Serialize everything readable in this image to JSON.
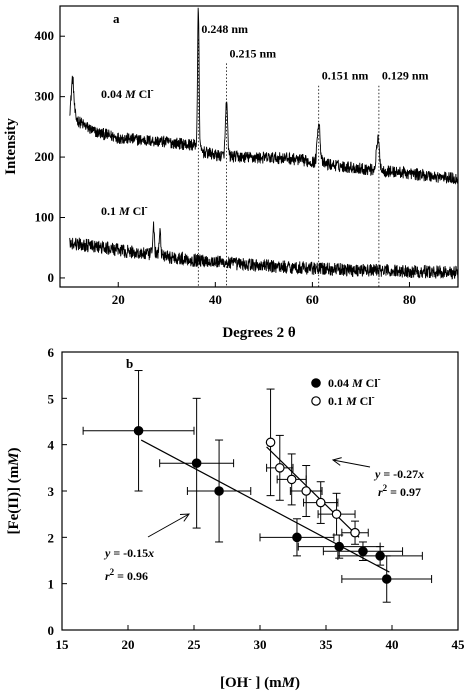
{
  "chart_data": [
    {
      "type": "line",
      "panel_label": "a",
      "xlabel": "Degrees 2 θ",
      "ylabel": "Intensity",
      "xlim": [
        8,
        90
      ],
      "ylim": [
        -15,
        450
      ],
      "xticks": [
        20,
        40,
        60,
        80
      ],
      "yticks": [
        0,
        100,
        200,
        300,
        400
      ],
      "series": [
        {
          "name": "0.04 M Cl⁻",
          "baseline": [
            [
              10,
              275
            ],
            [
              12,
              258
            ],
            [
              15,
              242
            ],
            [
              20,
              232
            ],
            [
              25,
              228
            ],
            [
              30,
              225
            ],
            [
              34,
              221
            ],
            [
              36,
              220
            ],
            [
              37,
              210
            ],
            [
              40,
              203
            ],
            [
              45,
              200
            ],
            [
              50,
              199
            ],
            [
              55,
              198
            ],
            [
              60,
              192
            ],
            [
              65,
              186
            ],
            [
              70,
              181
            ],
            [
              75,
              177
            ],
            [
              80,
              173
            ],
            [
              85,
              168
            ],
            [
              90,
              164
            ]
          ],
          "peaks": [
            [
              10.6,
              330,
              0.35
            ],
            [
              36.5,
              445,
              0.22
            ],
            [
              42.3,
              290,
              0.3
            ],
            [
              61.3,
              260,
              0.4
            ],
            [
              73.5,
              228,
              0.45
            ]
          ]
        },
        {
          "name": "0.1 M Cl⁻",
          "baseline": [
            [
              10,
              58
            ],
            [
              15,
              52
            ],
            [
              20,
              46
            ],
            [
              25,
              40
            ],
            [
              30,
              35
            ],
            [
              35,
              30
            ],
            [
              40,
              27
            ],
            [
              45,
              23
            ],
            [
              50,
              20
            ],
            [
              55,
              18
            ],
            [
              60,
              16
            ],
            [
              65,
              14
            ],
            [
              70,
              13
            ],
            [
              75,
              12
            ],
            [
              80,
              11
            ],
            [
              85,
              10
            ],
            [
              90,
              9
            ]
          ],
          "peaks": [
            [
              27.3,
              85,
              0.25
            ],
            [
              28.6,
              75,
              0.25
            ]
          ]
        }
      ],
      "series_labels": [
        {
          "prefix": "0.04 ",
          "italic": "M",
          "suffix": " Cl",
          "sup": "-"
        },
        {
          "prefix": "0.1 ",
          "italic": "M",
          "suffix": " Cl",
          "sup": "-"
        }
      ],
      "peak_annotations": [
        {
          "x": 36.5,
          "label": "0.248 nm",
          "label_y": 405
        },
        {
          "x": 42.3,
          "label": "0.215 nm",
          "label_y": 365
        },
        {
          "x": 61.3,
          "label": "0.151 nm",
          "label_y": 328
        },
        {
          "x": 73.7,
          "label": "0.129 nm",
          "label_y": 328
        }
      ]
    },
    {
      "type": "scatter",
      "panel_label": "b",
      "xlabel": {
        "prefix": "[OH",
        "sup": "-",
        "mid": " ] (m",
        "italic": "M",
        "suffix": ")"
      },
      "ylabel": {
        "prefix": "[Fe(II)] (m",
        "italic": "M",
        "suffix": ")"
      },
      "xlim": [
        15,
        45
      ],
      "ylim": [
        0,
        6
      ],
      "xticks": [
        15,
        20,
        25,
        30,
        35,
        40,
        45
      ],
      "yticks": [
        0,
        1,
        2,
        3,
        4,
        5,
        6
      ],
      "series": [
        {
          "name": "0.04 M Cl⁻",
          "marker": "filled",
          "points": [
            {
              "x": 20.8,
              "y": 4.3,
              "xerr": 4.2,
              "yerr": 1.3
            },
            {
              "x": 25.2,
              "y": 3.6,
              "xerr": 2.8,
              "yerr": 1.4
            },
            {
              "x": 26.9,
              "y": 3.0,
              "xerr": 2.4,
              "yerr": 1.1
            },
            {
              "x": 32.8,
              "y": 2.0,
              "xerr": 2.8,
              "yerr": 0.4
            },
            {
              "x": 36.0,
              "y": 1.8,
              "xerr": 3.1,
              "yerr": 0.25
            },
            {
              "x": 37.8,
              "y": 1.7,
              "xerr": 3.0,
              "yerr": 0.2
            },
            {
              "x": 39.1,
              "y": 1.6,
              "xerr": 3.2,
              "yerr": 0.2
            },
            {
              "x": 39.6,
              "y": 1.1,
              "xerr": 3.4,
              "yerr": 0.5
            }
          ]
        },
        {
          "name": "0.1 M Cl⁻",
          "marker": "open",
          "points": [
            {
              "x": 30.8,
              "y": 4.05,
              "xerr": 0.0,
              "yerr": 1.15
            },
            {
              "x": 31.5,
              "y": 3.5,
              "xerr": 1.0,
              "yerr": 0.7
            },
            {
              "x": 32.4,
              "y": 3.25,
              "xerr": 1.1,
              "yerr": 0.55
            },
            {
              "x": 33.5,
              "y": 3.0,
              "xerr": 1.2,
              "yerr": 0.55
            },
            {
              "x": 34.6,
              "y": 2.75,
              "xerr": 1.3,
              "yerr": 0.45
            },
            {
              "x": 35.8,
              "y": 2.5,
              "xerr": 1.4,
              "yerr": 0.45
            },
            {
              "x": 37.2,
              "y": 2.1,
              "xerr": 1.0,
              "yerr": 0.25
            }
          ]
        }
      ],
      "legend_labels": [
        {
          "prefix": "0.04 ",
          "italic": "M",
          "suffix": " Cl",
          "sup": "-"
        },
        {
          "prefix": "0.1 ",
          "italic": "M",
          "suffix": " Cl",
          "sup": "-"
        }
      ],
      "fits": [
        {
          "equation": "y = -0.15x",
          "r2": "= 0.96",
          "x_range": [
            21.0,
            39.8
          ],
          "y_range": [
            4.1,
            1.25
          ]
        },
        {
          "equation": "y = -0.27x",
          "r2": "= 0.97",
          "x_range": [
            30.5,
            37.5
          ],
          "y_range": [
            3.95,
            2.0
          ]
        }
      ]
    }
  ]
}
